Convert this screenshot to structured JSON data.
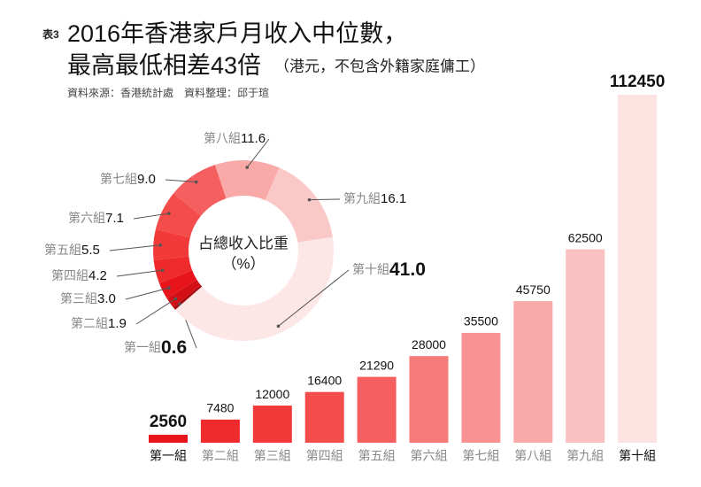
{
  "header": {
    "tag": "表3",
    "title_line1": "2016年香港家戶月收入中位數，",
    "title_line2": "最高最低相差43倍",
    "note": "（港元，不包含外籍家庭傭工）",
    "source": "資料來源：香港統計處　資料整理：邱于瑄"
  },
  "chart_data": [
    {
      "type": "bar",
      "categories": [
        "第一組",
        "第二組",
        "第三組",
        "第四組",
        "第五組",
        "第六組",
        "第七組",
        "第八組",
        "第九組",
        "第十組"
      ],
      "values": [
        2560,
        7480,
        12000,
        16400,
        21290,
        28000,
        35500,
        45750,
        62500,
        112450
      ],
      "colors": [
        "#e8141c",
        "#ef2a2c",
        "#f23a3b",
        "#f44b4b",
        "#f55f5f",
        "#f77a7a",
        "#f99393",
        "#faa9a9",
        "#fbc0c0",
        "#fde2e2"
      ]
    },
    {
      "type": "pie",
      "title": "占總收入比重",
      "subtitle": "（%）",
      "categories": [
        "第一組",
        "第二組",
        "第三組",
        "第四組",
        "第五組",
        "第六組",
        "第七組",
        "第八組",
        "第九組",
        "第十組"
      ],
      "values": [
        0.6,
        1.9,
        3.0,
        4.2,
        5.5,
        7.1,
        9.0,
        11.6,
        16.1,
        41.0
      ],
      "value_labels": [
        "0.6",
        "1.9",
        "3.0",
        "4.2",
        "5.5",
        "7.1",
        "9.0",
        "11.6",
        "16.1",
        "41.0"
      ],
      "colors": [
        "#a80c10",
        "#d40f15",
        "#e8141c",
        "#ef2a2c",
        "#f23a3b",
        "#f44b4b",
        "#f55f5f",
        "#faa9a9",
        "#fbc8c8",
        "#fde6e6"
      ]
    }
  ]
}
